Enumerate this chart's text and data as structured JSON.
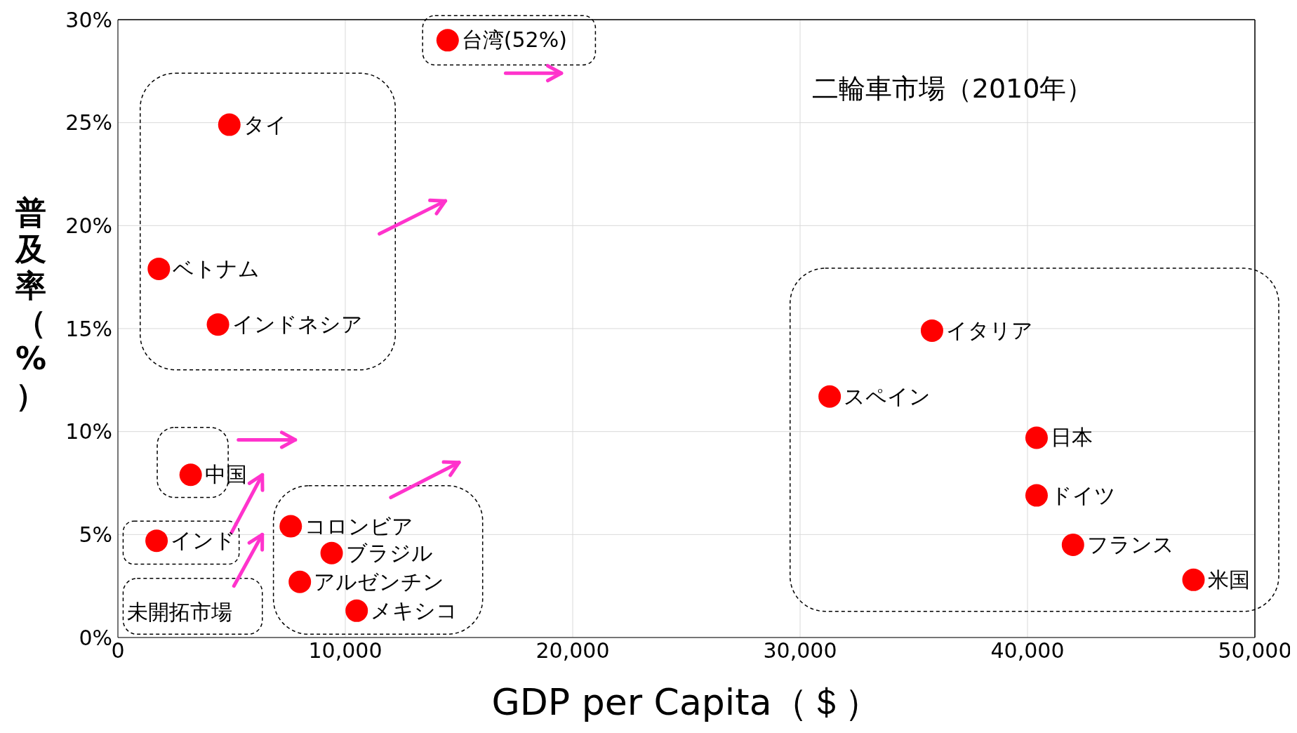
{
  "chart_data": {
    "type": "scatter",
    "title": "二輪車市場（2010年）",
    "xlabel": "GDP per Capita（＄）",
    "ylabel": "普及率（%）",
    "x": [
      14500,
      4900,
      1800,
      4400,
      3200,
      1700,
      7600,
      9400,
      8000,
      10500,
      35800,
      31300,
      40400,
      40400,
      42000,
      47300
    ],
    "values": [
      29,
      24.9,
      17.9,
      15.2,
      7.9,
      4.7,
      5.4,
      4.1,
      2.7,
      1.3,
      14.9,
      11.7,
      9.7,
      6.9,
      4.5,
      2.8
    ],
    "color": "#ff0000",
    "marker": "circle",
    "grid": true,
    "xlim": [
      0,
      50000
    ],
    "ylim": [
      0,
      30
    ],
    "xticks": [
      0,
      {
        "value": 10000,
        "label": "10,000"
      },
      {
        "value": 20000,
        "label": "20,000"
      },
      {
        "value": 30000,
        "label": "30,000"
      },
      {
        "value": 40000,
        "label": "40,000"
      },
      {
        "value": 50000,
        "label": "50,000"
      }
    ],
    "yticks": [
      {
        "value": 0,
        "label": "0%"
      },
      {
        "value": 5,
        "label": "5%"
      },
      {
        "value": 10,
        "label": "10%"
      },
      {
        "value": 15,
        "label": "15%"
      },
      {
        "value": 20,
        "label": "20%"
      },
      {
        "value": 25,
        "label": "25%"
      },
      {
        "value": 30,
        "label": "30%"
      }
    ],
    "annotations": [
      {
        "text": "台湾(52%)",
        "x": 14500,
        "y": 29
      },
      {
        "text": "タイ",
        "x": 4900,
        "y": 24.9
      },
      {
        "text": "ベトナム",
        "x": 1800,
        "y": 17.9
      },
      {
        "text": "インドネシア",
        "x": 4400,
        "y": 15.2
      },
      {
        "text": "中国",
        "x": 3200,
        "y": 7.9
      },
      {
        "text": "インド",
        "x": 1700,
        "y": 4.7
      },
      {
        "text": "コロンビア",
        "x": 7600,
        "y": 5.4
      },
      {
        "text": "ブラジル",
        "x": 9400,
        "y": 4.1
      },
      {
        "text": "アルゼンチン",
        "x": 8000,
        "y": 2.7
      },
      {
        "text": "メキシコ",
        "x": 10500,
        "y": 1.3
      },
      {
        "text": "イタリア",
        "x": 35800,
        "y": 14.9
      },
      {
        "text": "スペイン",
        "x": 31300,
        "y": 11.7
      },
      {
        "text": "日本",
        "x": 40400,
        "y": 9.7
      },
      {
        "text": "ドイツ",
        "x": 40400,
        "y": 6.9
      },
      {
        "text": "フランス",
        "x": 42000,
        "y": 4.5
      },
      {
        "text": "米国",
        "x": 47300,
        "y": 2.8
      },
      "未開拓市場"
    ]
  }
}
